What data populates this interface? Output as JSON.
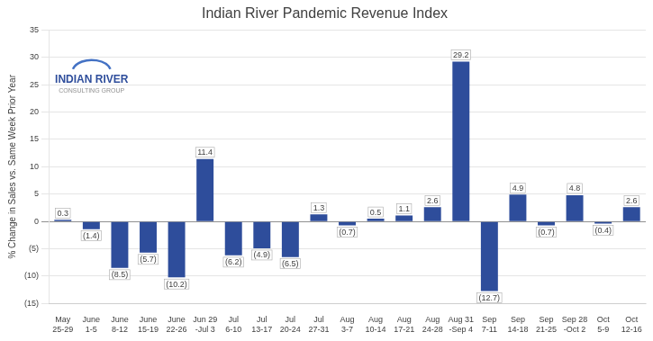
{
  "chart_data": {
    "type": "bar",
    "title": "Indian River Pandemic Revenue Index",
    "ylabel": "% Change in Sales vs. Same Week Prior Year",
    "categories": [
      "May\n25-29",
      "June\n1-5",
      "June\n8-12",
      "June\n15-19",
      "June\n22-26",
      "Jun 29\n-Jul 3",
      "Jul\n6-10",
      "Jul\n13-17",
      "Jul\n20-24",
      "Jul\n27-31",
      "Aug\n3-7",
      "Aug\n10-14",
      "Aug\n17-21",
      "Aug\n24-28",
      "Aug 31\n-Sep 4",
      "Sep\n7-11",
      "Sep\n14-18",
      "Sep\n21-25",
      "Sep 28\n-Oct 2",
      "Oct\n5-9",
      "Oct\n12-16"
    ],
    "values": [
      0.3,
      -1.4,
      -8.5,
      -5.7,
      -10.2,
      11.4,
      -6.2,
      -4.9,
      -6.5,
      1.3,
      -0.7,
      0.5,
      1.1,
      2.6,
      29.2,
      -12.7,
      4.9,
      -0.7,
      4.8,
      -0.4,
      2.6
    ],
    "value_labels": [
      "0.3",
      "(1.4)",
      "(8.5)",
      "(5.7)",
      "(10.2)",
      "11.4",
      "(6.2)",
      "(4.9)",
      "(6.5)",
      "1.3",
      "(0.7)",
      "0.5",
      "1.1",
      "2.6",
      "29.2",
      "(12.7)",
      "4.9",
      "(0.7)",
      "4.8",
      "(0.4)",
      "2.6"
    ],
    "data_labels": true,
    "color": "#2E4D9B",
    "ylim": [
      -15,
      35
    ],
    "yticks": [
      {
        "value": -15,
        "label": "(15)"
      },
      {
        "value": -10,
        "label": "(10)"
      },
      {
        "value": -5,
        "label": "(5)"
      },
      0,
      5,
      10,
      15,
      20,
      25,
      30,
      35
    ],
    "grid": true,
    "annotations": [
      "INDIAN RIVER",
      "CONSULTING GROUP"
    ]
  }
}
